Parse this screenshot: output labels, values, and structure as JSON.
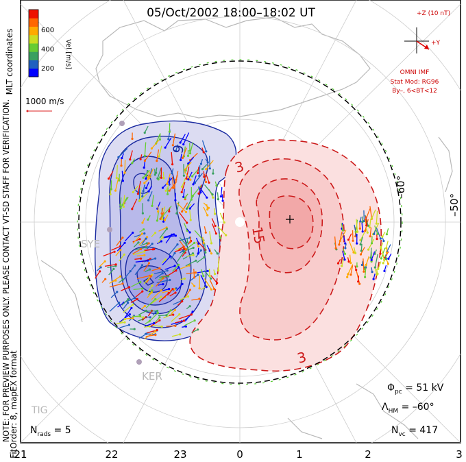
{
  "title": "05/Oct/2002 18:00–18:02 UT",
  "coords_label": "MLT coordinates",
  "note_line1": "NOTE: FOR PREVIEW PURPOSES ONLY. PLEASE CONTACT VT-SD STAFF FOR VERIFICATION.",
  "note_line2": "FitOrder: 8, mapEX format",
  "colorbar": {
    "label": "Vel [m/s]",
    "ticks": [
      "600",
      "400",
      "200"
    ],
    "colors": [
      "#0000ff",
      "#2060c0",
      "#3aa060",
      "#66cc33",
      "#ccdd22",
      "#ffaa00",
      "#ff6600",
      "#ee1100"
    ]
  },
  "scale_vector": {
    "label": "1000 m/s"
  },
  "imf": {
    "z_label": "+Z (10 nT)",
    "y_label": "+Y",
    "source": "OMNI IMF",
    "model_line1": "Stat Mod: RG96",
    "model_line2": "By–, 6<BT<12"
  },
  "stations": [
    "SYE",
    "KER",
    "TIG"
  ],
  "latitude_labels": [
    "–60°",
    "–50°"
  ],
  "contour_labels": [
    "9",
    "3",
    "15",
    "3"
  ],
  "mlt_labels": [
    "21",
    "22",
    "23",
    "0",
    "1",
    "2",
    "3"
  ],
  "stats": {
    "phi_sym": "Φ",
    "phi_sub": "pc",
    "phi_val": " = 51 kV",
    "lambda_sym": "Λ",
    "lambda_sub": "HM",
    "lambda_val": " = –60°",
    "nvc_sym": "N",
    "nvc_sub": "vc",
    "nvc_val": " = 417",
    "nrads_sym": "N",
    "nrads_sub": "rads",
    "nrads_val": " = 5"
  }
}
